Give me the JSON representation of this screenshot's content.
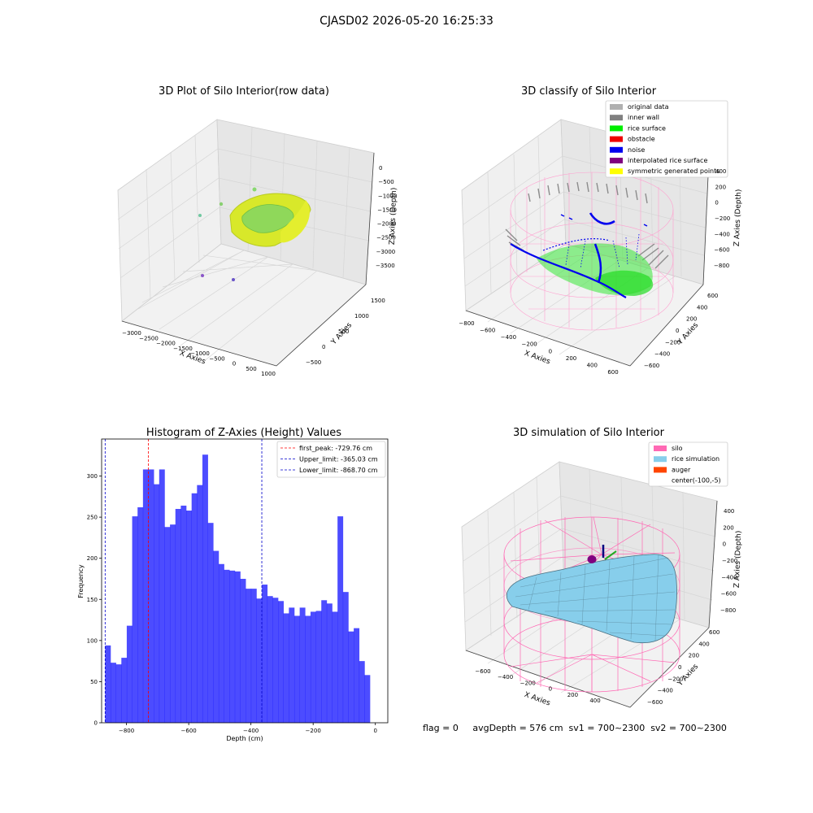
{
  "figure": {
    "title": "CJASD02 2026-05-20 16:25:33",
    "footer": "flag = 0     avgDepth = 576 cm  sv1 = 700~2300  sv2 = 700~2300"
  },
  "panels": {
    "tl": {
      "title": "3D Plot of Silo Interior(row data)",
      "xlabel": "X Axies",
      "ylabel": "Y Axies",
      "zlabel": "Z Axies (Depth)",
      "xticks": [
        "−3000",
        "−2500",
        "−2000",
        "−1500",
        "−1000",
        "−500",
        "0",
        "500",
        "1000"
      ],
      "yticks": [
        "−500",
        "0",
        "500",
        "1000",
        "1500"
      ],
      "zticks": [
        "0",
        "−500",
        "−1000",
        "−1500",
        "−2000",
        "−2500",
        "−3000",
        "−3500"
      ]
    },
    "tr": {
      "title": "3D classify of Silo Interior",
      "xlabel": "X Axies",
      "ylabel": "Y Axies",
      "zlabel": "Z Axies (Depth)",
      "xticks": [
        "−800",
        "−600",
        "−400",
        "−200",
        "0",
        "200",
        "400",
        "600"
      ],
      "yticks": [
        "−600",
        "−400",
        "−200",
        "0",
        "200",
        "400",
        "600"
      ],
      "zticks": [
        "400",
        "200",
        "0",
        "−200",
        "−400",
        "−600",
        "−800"
      ],
      "legend": [
        {
          "label": "original data",
          "color": "#b0b0b0"
        },
        {
          "label": "inner wall",
          "color": "#808080"
        },
        {
          "label": "rice surface",
          "color": "#00ee00"
        },
        {
          "label": "obstacle",
          "color": "#ee0000"
        },
        {
          "label": "noise",
          "color": "#0000ee"
        },
        {
          "label": "interpolated rice surface",
          "color": "#800080"
        },
        {
          "label": "symmetric generated points",
          "color": "#ffff00"
        }
      ]
    },
    "bl": {
      "title": "Histogram of Z-Axies (Height) Values",
      "xlabel": "Depth (cm)",
      "ylabel": "Frequency"
    },
    "br": {
      "title": "3D simulation of Silo Interior",
      "xlabel": "X Axies",
      "ylabel": "Y Axies",
      "zlabel": "Z Axies (Depth)",
      "xticks": [
        "−600",
        "−400",
        "−200",
        "0",
        "200",
        "400"
      ],
      "yticks": [
        "−600",
        "−400",
        "−200",
        "0",
        "200",
        "400",
        "600"
      ],
      "zticks": [
        "400",
        "200",
        "0",
        "−200",
        "−400",
        "−600",
        "−800"
      ],
      "legend": [
        {
          "label": "silo",
          "color": "#ff69b4"
        },
        {
          "label": "rice simulation",
          "color": "#87ceeb"
        },
        {
          "label": "auger",
          "color": "#ff4500"
        },
        {
          "label": "center(-100,-5)",
          "color": null
        }
      ]
    }
  },
  "chart_data": {
    "type": "bar",
    "title": "Histogram of Z-Axies (Height) Values",
    "xlabel": "Depth (cm)",
    "ylabel": "Frequency",
    "xlim": [
      -880,
      40
    ],
    "ylim": [
      0,
      345
    ],
    "xticks": [
      -800,
      -600,
      -400,
      -200,
      0
    ],
    "yticks": [
      0,
      50,
      100,
      150,
      200,
      250,
      300
    ],
    "bar_color": "#0000ff",
    "bins": {
      "start": -868.7,
      "width": 17.374,
      "count": 50
    },
    "values": [
      94,
      73,
      71,
      79,
      118,
      251,
      262,
      308,
      308,
      290,
      308,
      238,
      241,
      260,
      264,
      258,
      279,
      289,
      326,
      243,
      209,
      193,
      186,
      185,
      184,
      175,
      163,
      163,
      151,
      168,
      154,
      152,
      148,
      133,
      140,
      130,
      140,
      130,
      135,
      136,
      149,
      145,
      135,
      251,
      159,
      111,
      115,
      75,
      58,
      0
    ],
    "vlines": [
      {
        "x": -729.76,
        "color": "#ff0000",
        "style": "dashed",
        "label": "first_peak: -729.76 cm"
      },
      {
        "x": -365.03,
        "color": "#0000cc",
        "style": "dashed",
        "label": "Upper_limit: -365.03 cm"
      },
      {
        "x": -868.7,
        "color": "#0000cc",
        "style": "dashed",
        "label": "Lower_limit: -868.70 cm"
      }
    ],
    "legend_position": "upper right"
  }
}
